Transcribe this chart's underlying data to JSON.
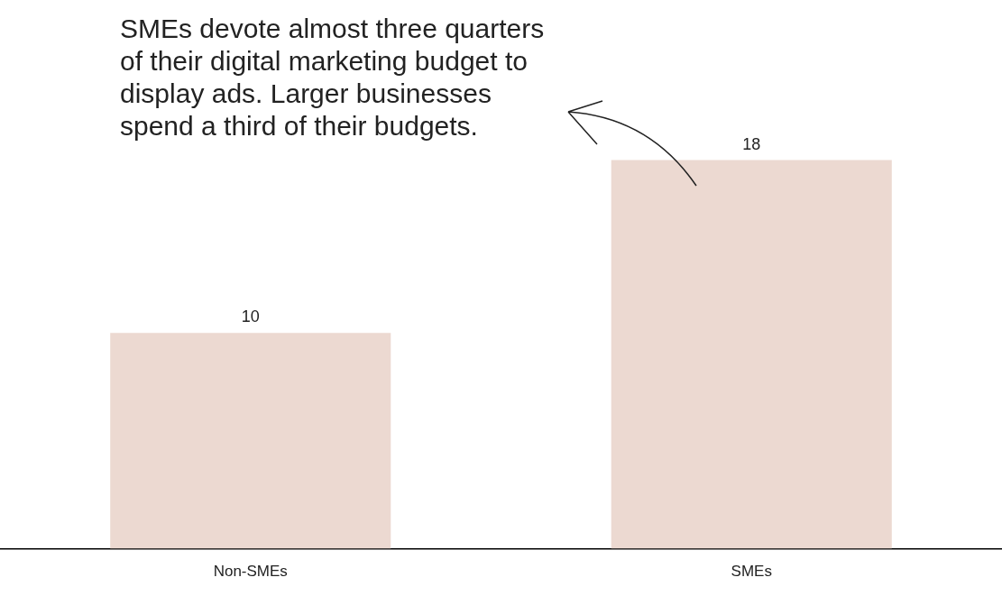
{
  "chart_data": {
    "type": "bar",
    "categories": [
      "Non-SMEs",
      "SMEs"
    ],
    "values": [
      10,
      18
    ],
    "color": "#ecd9d1",
    "data_labels": true,
    "grid": false,
    "legend": false,
    "annotations": [
      "SMEs devote almost three quarters of their digital marketing budget to display ads. Larger businesses spend a third of their budgets."
    ]
  }
}
